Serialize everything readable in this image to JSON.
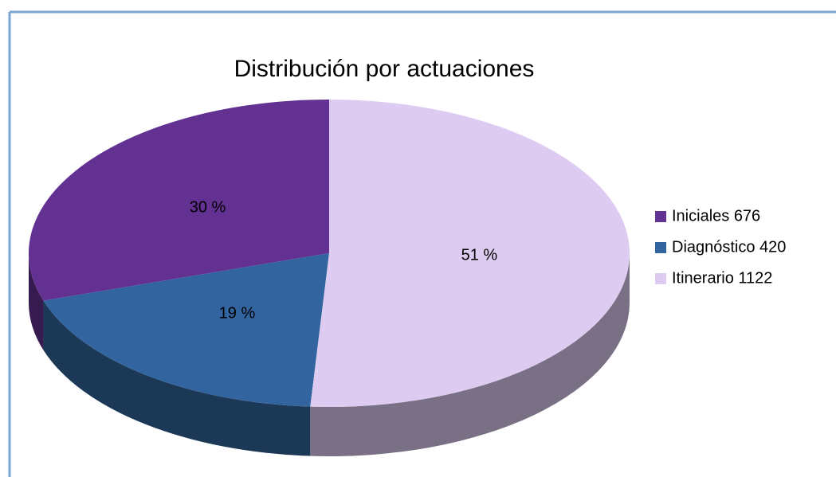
{
  "chart_data": {
    "type": "pie",
    "title": "Distribución por actuaciones",
    "categories": [
      "Iniciales 676",
      "Diagnóstico 420",
      "Itinerario 1122"
    ],
    "values": [
      30,
      19,
      51
    ],
    "value_labels": [
      "30 %",
      "19 %",
      "51 %"
    ],
    "colors": [
      "#633192",
      "#32659f",
      "#ddcbf1"
    ],
    "legend": "right"
  }
}
